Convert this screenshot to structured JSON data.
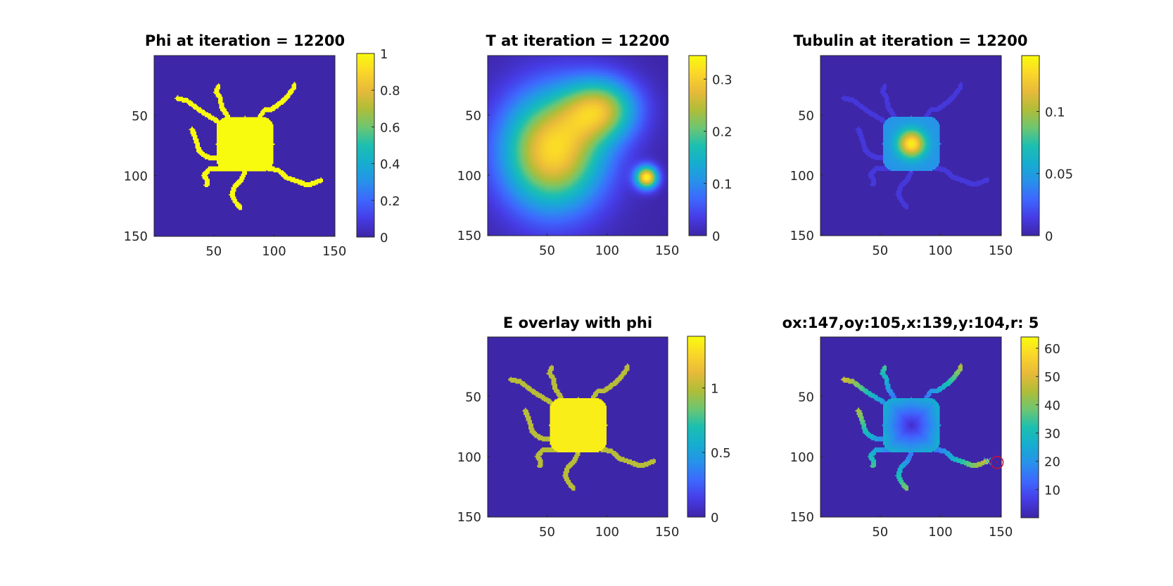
{
  "colors": {
    "background": "#3e26a8",
    "highlight": "#f9fb0e",
    "axis": "#262626"
  },
  "colormap": "parula",
  "chart_data": [
    {
      "id": "phi",
      "type": "heatmap",
      "title": "Phi at iteration = 12200",
      "xlim": [
        1,
        150
      ],
      "ylim": [
        1,
        150
      ],
      "y_reversed": true,
      "xticks": [
        50,
        100,
        150
      ],
      "yticks": [
        50,
        100,
        150
      ],
      "clim": [
        0,
        1
      ],
      "cticks": [
        0,
        0.2,
        0.4,
        0.6,
        0.8,
        1
      ],
      "colorbar_labels": [
        "0",
        "0.2",
        "0.4",
        "0.6",
        "0.8",
        "1"
      ],
      "field": "cell",
      "value_inside": 1,
      "value_outside": 0
    },
    {
      "id": "T",
      "type": "heatmap",
      "title": "T at iteration = 12200",
      "xlim": [
        1,
        150
      ],
      "ylim": [
        1,
        150
      ],
      "y_reversed": true,
      "xticks": [
        50,
        100,
        150
      ],
      "yticks": [
        50,
        100,
        150
      ],
      "clim": [
        0,
        0.345
      ],
      "cticks": [
        0,
        0.1,
        0.2,
        0.3
      ],
      "colorbar_labels": [
        "0",
        "0.1",
        "0.2",
        "0.3"
      ],
      "field": "diffuse",
      "peaks": [
        {
          "x": 55,
          "y": 80,
          "value": 0.31
        },
        {
          "x": 133,
          "y": 102,
          "value": 0.33
        }
      ]
    },
    {
      "id": "tubulin",
      "type": "heatmap",
      "title": "Tubulin at iteration = 12200",
      "xlim": [
        1,
        150
      ],
      "ylim": [
        1,
        150
      ],
      "y_reversed": true,
      "xticks": [
        50,
        100,
        150
      ],
      "yticks": [
        50,
        100,
        150
      ],
      "clim": [
        0,
        0.145
      ],
      "cticks": [
        0,
        0.05,
        0.1
      ],
      "colorbar_labels": [
        "0",
        "0.05",
        "0.1"
      ],
      "field": "spot",
      "peaks": [
        {
          "x": 76,
          "y": 74,
          "value": 0.14
        }
      ]
    },
    {
      "id": "E",
      "type": "heatmap",
      "title": "E overlay with phi",
      "xlim": [
        1,
        150
      ],
      "ylim": [
        1,
        150
      ],
      "y_reversed": true,
      "xticks": [
        50,
        100,
        150
      ],
      "yticks": [
        50,
        100,
        150
      ],
      "clim": [
        0,
        1.4
      ],
      "cticks": [
        0,
        0.5,
        1
      ],
      "colorbar_labels": [
        "0",
        "0.5",
        "1"
      ],
      "field": "cell",
      "value_body": 1.35,
      "value_neurite": 1.0,
      "value_outside": 0
    },
    {
      "id": "dist",
      "type": "heatmap",
      "title": "ox:147,oy:105,x:139,y:104,r: 5",
      "xlim": [
        1,
        150
      ],
      "ylim": [
        1,
        150
      ],
      "y_reversed": true,
      "xticks": [
        50,
        100,
        150
      ],
      "yticks": [
        50,
        100,
        150
      ],
      "clim": [
        0,
        64
      ],
      "cticks": [
        10,
        20,
        30,
        40,
        50,
        60
      ],
      "colorbar_labels": [
        "10",
        "20",
        "30",
        "40",
        "50",
        "60"
      ],
      "field": "distance",
      "markers": [
        {
          "type": "x",
          "x": 139,
          "y": 104,
          "color": "#21c4e6"
        },
        {
          "type": "circle",
          "x": 147,
          "y": 105,
          "r": 5,
          "color": "#c0143c"
        }
      ]
    }
  ],
  "cell_shape": {
    "body": {
      "center": [
        76,
        74
      ],
      "half_size": [
        24,
        23
      ]
    },
    "neurites": [
      [
        [
          60,
          60
        ],
        [
          50,
          53
        ],
        [
          40,
          47
        ],
        [
          28,
          38
        ],
        [
          20,
          36
        ]
      ],
      [
        [
          62,
          52
        ],
        [
          57,
          44
        ],
        [
          55,
          35
        ],
        [
          52,
          31
        ],
        [
          54,
          26
        ]
      ],
      [
        [
          88,
          52
        ],
        [
          92,
          46
        ],
        [
          97,
          46
        ],
        [
          104,
          41
        ],
        [
          110,
          36
        ],
        [
          116,
          28
        ],
        [
          117,
          25
        ]
      ],
      [
        [
          58,
          86
        ],
        [
          45,
          85
        ],
        [
          38,
          80
        ],
        [
          36,
          73
        ],
        [
          34,
          67
        ],
        [
          32,
          62
        ]
      ],
      [
        [
          60,
          94
        ],
        [
          46,
          95
        ],
        [
          42,
          100
        ],
        [
          45,
          105
        ],
        [
          44,
          108
        ]
      ],
      [
        [
          76,
          97
        ],
        [
          72,
          105
        ],
        [
          67,
          110
        ],
        [
          65,
          116
        ],
        [
          68,
          122
        ],
        [
          72,
          127
        ]
      ],
      [
        [
          95,
          94
        ],
        [
          104,
          96
        ],
        [
          111,
          102
        ],
        [
          120,
          105
        ],
        [
          128,
          108
        ],
        [
          134,
          106
        ],
        [
          139,
          104
        ]
      ]
    ]
  }
}
